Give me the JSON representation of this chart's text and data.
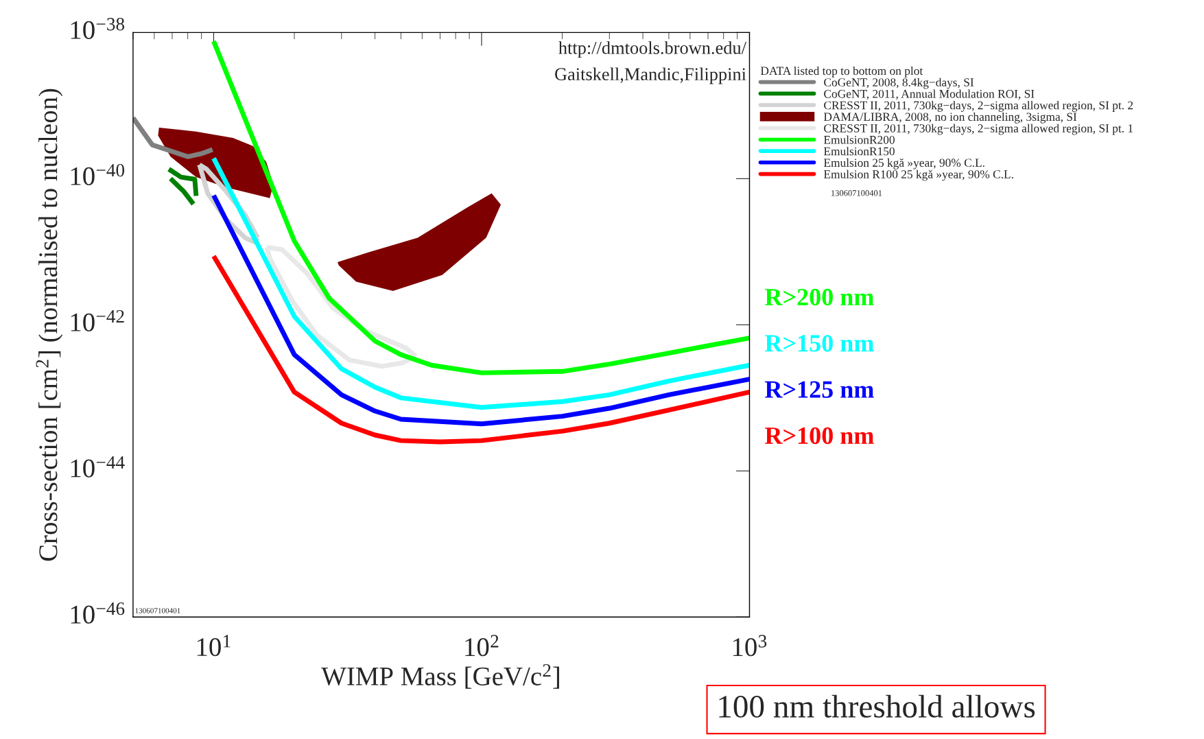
{
  "chart_data": {
    "type": "line",
    "xlabel": "WIMP Mass [GeV/c$^{2}$]",
    "ylabel": "Cross-section [cm$^{2}$] (normalised to nucleon)",
    "legend_title": "DATA listed top to bottom on plot",
    "log": "xy",
    "xlim": [
      5,
      1000
    ],
    "ylim": [
      1e-46,
      1e-38
    ],
    "xticks": [
      {
        "value": 10,
        "label": "10$^{1}$"
      },
      {
        "value": 100,
        "label": "10$^{2}$"
      },
      {
        "value": 1000,
        "label": "10$^{3}$"
      }
    ],
    "yticks": [
      {
        "value": 1e-46,
        "label": "10$^{−46}$"
      },
      {
        "value": 1e-44,
        "label": "10$^{−44}$"
      },
      {
        "value": 1e-42,
        "label": "10$^{−42}$"
      },
      {
        "value": 1e-40,
        "label": "10$^{−40}$"
      },
      {
        "value": 1e-38,
        "label": "10$^{−38}$"
      }
    ],
    "grid": false,
    "legend": "top right",
    "series": [
      {
        "name": "CoGeNT, 2008, 8.4kg−days, SI",
        "color": "#808080",
        "x": [
          5.0,
          5.9,
          8.0,
          9.0,
          9.9
        ],
        "values": [
          6.8e-40,
          2.9e-40,
          2e-40,
          2.2e-40,
          2.5e-40
        ]
      },
      {
        "name": "CoGeNT, 2011, Annual Modulation ROI, SI",
        "color": "#008000",
        "x": [
          6.8,
          7.55,
          8.5,
          8.6
        ],
        "values": [
          1.35e-40,
          1.05e-40,
          9.8e-41,
          5.8e-41
        ]
      },
      {
        "color": "#008000",
        "x": [
          6.9,
          7.7,
          8.4
        ],
        "values": [
          1e-40,
          6.8e-41,
          4.5e-41
        ]
      },
      {
        "name": "CRESST II, 2011, 730kg−days, 2−sigma allowed region, SI pt. 2",
        "color": "#d3d3d3",
        "x": [
          8.85,
          9.4,
          11.1,
          13.1,
          14.6
        ],
        "values": [
          1.55e-40,
          1.35e-40,
          6.8e-41,
          3.2e-41,
          1.55e-41
        ]
      },
      {
        "color": "#d3d3d3",
        "x": [
          8.85,
          9.5,
          11.1,
          13.1,
          14.3,
          14.6
        ],
        "values": [
          1.55e-40,
          6.3e-41,
          2.8e-41,
          1.55e-41,
          1.35e-41,
          1.55e-41
        ]
      },
      {
        "name": "DAMA/LIBRA, 2008, no ion channeling, 3sigma, SI",
        "type": "area",
        "color": "#7f0000",
        "x": [
          6.25,
          8.6,
          11.8,
          14.0,
          15.7,
          16.7,
          16.2,
          13.7,
          11.1,
          8.6,
          6.9,
          6.2
        ],
        "values": [
          5e-40,
          4.4e-40,
          3.6e-40,
          2.8e-40,
          1.7e-40,
          8.3e-41,
          5.4e-41,
          6.3e-41,
          7.6e-41,
          1.05e-40,
          2e-40,
          3.9e-40
        ]
      },
      {
        "type": "area",
        "color": "#7f0000",
        "x": [
          29.0,
          37.8,
          57.7,
          88.1,
          109,
          118,
          104,
          71.3,
          46.7,
          34.0,
          29.3
        ],
        "values": [
          7.2e-42,
          9.8e-42,
          1.55e-41,
          4e-41,
          6.3e-41,
          4.4e-41,
          1.55e-41,
          4.8e-42,
          2.9e-42,
          3.9e-42,
          6.5e-42
        ]
      },
      {
        "name": "CRESST II, 2011, 730kg−days, 2−sigma allowed region, SI pt. 1",
        "color": "#e8e8e8",
        "x": [
          15.8,
          18.0,
          22.4,
          27.9,
          36.8,
          52.2,
          56.9
        ],
        "values": [
          1.15e-41,
          1.07e-41,
          5e-42,
          1.7e-42,
          8.3e-43,
          4.8e-43,
          3.7e-43
        ]
      },
      {
        "color": "#e8e8e8",
        "x": [
          15.8,
          16.2,
          19.7,
          24.3,
          32.1,
          42.4,
          50.4,
          56.9
        ],
        "values": [
          1.15e-41,
          8.1e-42,
          2.1e-42,
          7.2e-43,
          3.3e-43,
          2.7e-43,
          3e-43,
          3.7e-43
        ]
      },
      {
        "name": "EmulsionR200",
        "color": "#00ff00",
        "x": [
          10,
          20,
          27,
          40,
          50,
          65,
          100,
          200,
          300,
          500,
          1000
        ],
        "values": [
          7.6e-39,
          1.4e-41,
          2.3e-42,
          6e-43,
          3.9e-43,
          2.8e-43,
          2.2e-43,
          2.3e-43,
          2.9e-43,
          4.1e-43,
          6.6e-43
        ]
      },
      {
        "name": "EmulsionR150",
        "color": "#00ffff",
        "x": [
          10,
          20,
          30,
          40,
          50,
          100,
          200,
          300,
          500,
          1000
        ],
        "values": [
          1.9e-40,
          1.3e-42,
          2.5e-43,
          1.4e-43,
          1e-43,
          7.4e-44,
          8.9e-44,
          1.1e-43,
          1.7e-43,
          2.8e-43
        ]
      },
      {
        "name": "Emulsion 25 kgă »year, 90% C.L.",
        "color": "#0000ff",
        "x": [
          10,
          20,
          30,
          40,
          50,
          100,
          200,
          300,
          500,
          1000
        ],
        "values": [
          5.9e-41,
          3.9e-43,
          1.1e-43,
          6.6e-44,
          5.1e-44,
          4.4e-44,
          5.6e-44,
          7.2e-44,
          1.1e-43,
          1.8e-43
        ]
      },
      {
        "name": "Emulsion R100 25 kgă »year, 90% C.L.",
        "color": "#ff0000",
        "x": [
          10,
          20,
          30,
          40,
          50,
          70,
          100,
          200,
          300,
          500,
          1000
        ],
        "values": [
          8.7e-42,
          1.2e-43,
          4.5e-44,
          3.1e-44,
          2.6e-44,
          2.5e-44,
          2.6e-44,
          3.5e-44,
          4.5e-44,
          6.8e-44,
          1.2e-43
        ]
      }
    ],
    "annotations": [
      "http://dmtools.brown.edu/",
      "Gaitskell,Mandic,Filippini",
      "130607100401",
      "130607100401",
      "R>200 nm",
      "R>150 nm",
      "R>125 nm",
      "R>100 nm",
      "100 nm threshold allows"
    ]
  }
}
